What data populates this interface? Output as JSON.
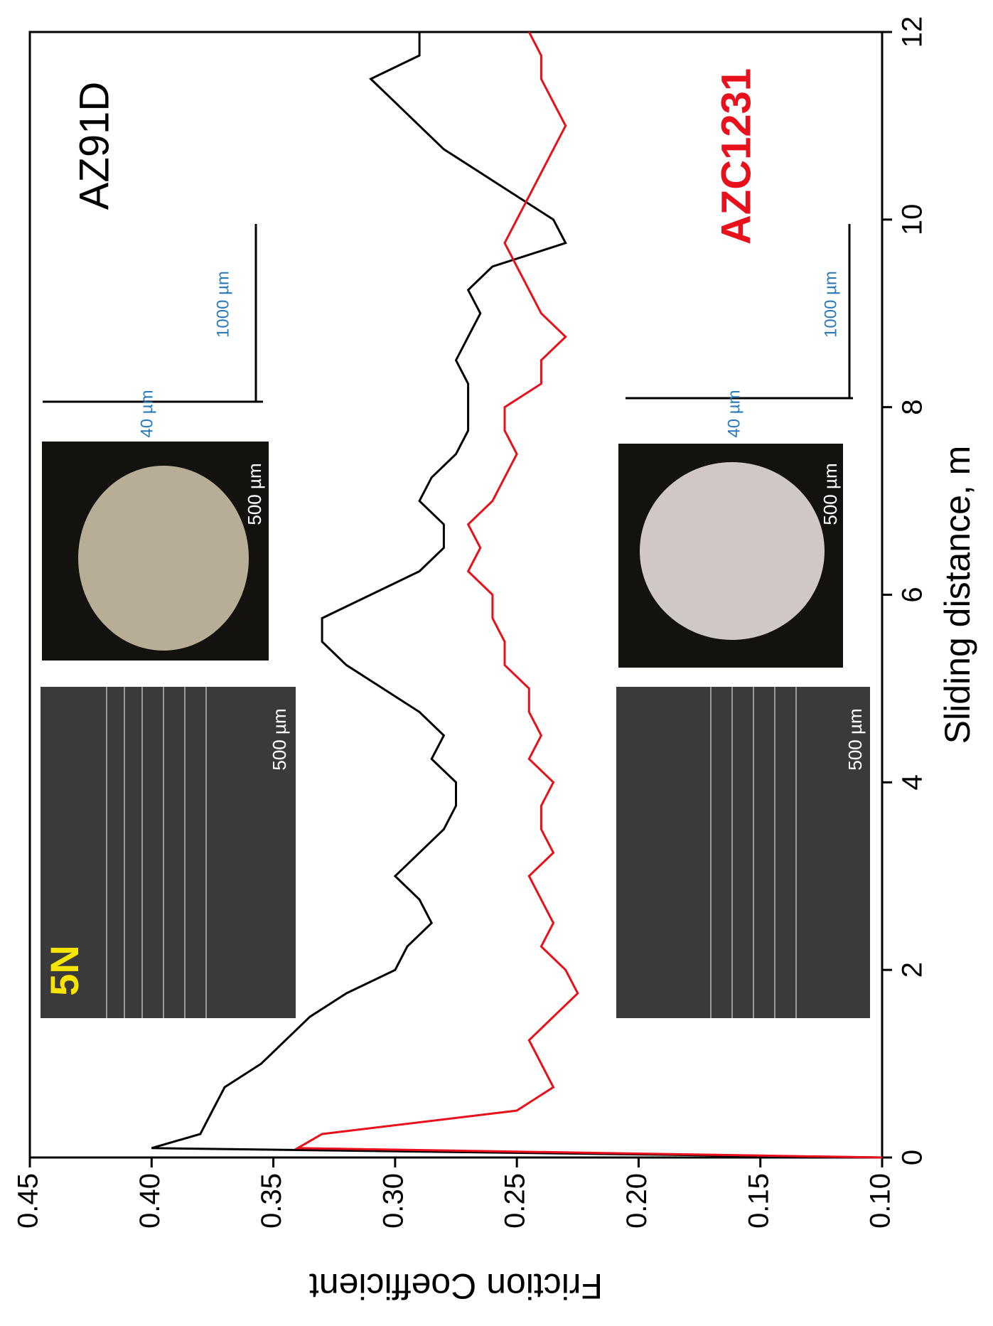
{
  "chart_data": {
    "type": "line",
    "x_label": "Sliding distance, m",
    "y_label": "Friction Coefficient",
    "x": [
      0,
      0.1,
      0.25,
      0.5,
      0.75,
      1,
      1.25,
      1.5,
      1.75,
      2,
      2.25,
      2.5,
      2.75,
      3,
      3.25,
      3.5,
      3.75,
      4,
      4.25,
      4.5,
      4.75,
      5,
      5.25,
      5.5,
      5.75,
      6,
      6.25,
      6.5,
      6.75,
      7,
      7.25,
      7.5,
      7.75,
      8,
      8.25,
      8.5,
      8.75,
      9,
      9.25,
      9.5,
      9.75,
      10,
      10.25,
      10.5,
      10.75,
      11,
      11.25,
      11.5,
      11.75,
      12
    ],
    "series": [
      {
        "name": "AZ91D",
        "color": "#000000",
        "values": [
          0.1,
          0.4,
          0.38,
          0.375,
          0.37,
          0.355,
          0.345,
          0.335,
          0.32,
          0.3,
          0.295,
          0.285,
          0.29,
          0.3,
          0.29,
          0.28,
          0.275,
          0.275,
          0.285,
          0.28,
          0.29,
          0.305,
          0.32,
          0.33,
          0.33,
          0.31,
          0.29,
          0.28,
          0.28,
          0.29,
          0.285,
          0.275,
          0.27,
          0.27,
          0.27,
          0.275,
          0.27,
          0.265,
          0.27,
          0.26,
          0.23,
          0.235,
          0.25,
          0.265,
          0.28,
          0.29,
          0.3,
          0.31,
          0.29,
          0.29
        ]
      },
      {
        "name": "AZC1231",
        "color": "#e8101a",
        "values": [
          0.1,
          0.34,
          0.33,
          0.25,
          0.235,
          0.24,
          0.245,
          0.235,
          0.225,
          0.23,
          0.24,
          0.235,
          0.24,
          0.245,
          0.235,
          0.24,
          0.24,
          0.235,
          0.245,
          0.24,
          0.245,
          0.245,
          0.255,
          0.255,
          0.26,
          0.26,
          0.27,
          0.265,
          0.27,
          0.26,
          0.255,
          0.25,
          0.255,
          0.255,
          0.24,
          0.24,
          0.23,
          0.24,
          0.245,
          0.25,
          0.255,
          0.25,
          0.245,
          0.24,
          0.235,
          0.23,
          0.235,
          0.24,
          0.24,
          0.245
        ]
      }
    ],
    "xlim": [
      0,
      12
    ],
    "xticks": [
      0,
      2,
      4,
      6,
      8,
      10,
      12
    ],
    "ylim": [
      0.1,
      0.45
    ],
    "yticks": [
      {
        "value": 0.1,
        "label": "0.10"
      },
      0.15,
      {
        "value": 0.2,
        "label": "0.20"
      },
      0.25,
      {
        "value": 0.3,
        "label": "0.30"
      },
      0.35,
      {
        "value": 0.4,
        "label": "0.40"
      },
      0.45
    ],
    "annotations": [
      "5N",
      "500 µm",
      "500 µm",
      "500 µm",
      "500 µm",
      "1000 µm",
      "40 µm",
      "1000 µm",
      "40 µm"
    ],
    "grid": false
  }
}
